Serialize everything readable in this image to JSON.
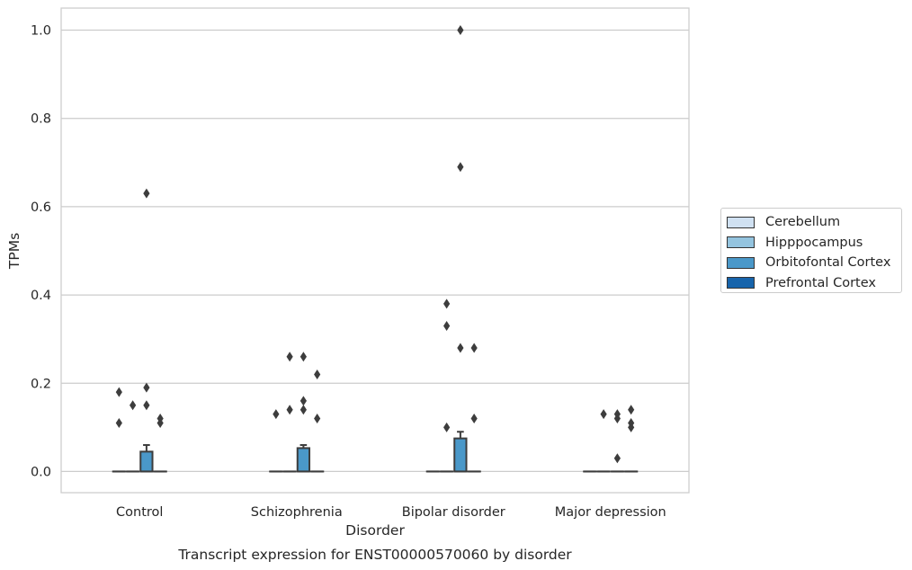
{
  "chart_data": {
    "type": "box",
    "title": "Transcript expression for ENST00000570060 by disorder",
    "xlabel": "Disorder",
    "ylabel": "TPMs",
    "categories": [
      "Control",
      "Schizophrenia",
      "Bipolar disorder",
      "Major depression"
    ],
    "ylim": [
      -0.048,
      1.05
    ],
    "yticks": [
      "0.0",
      "0.2",
      "0.4",
      "0.6",
      "0.8",
      "1.0"
    ],
    "ytick_values": [
      0.0,
      0.2,
      0.4,
      0.6,
      0.8,
      1.0
    ],
    "grid": "horizontal",
    "legend_position": "right",
    "series": [
      {
        "name": "Cerebellum",
        "color": "#d0e1f2",
        "boxes": [
          {
            "q1": 0,
            "median": 0,
            "q3": 0,
            "whisker_low": 0,
            "whisker_high": 0,
            "outliers": [
              0.11,
              0.18
            ]
          },
          {
            "q1": 0,
            "median": 0,
            "q3": 0,
            "whisker_low": 0,
            "whisker_high": 0,
            "outliers": [
              0.13
            ]
          },
          {
            "q1": 0,
            "median": 0,
            "q3": 0,
            "whisker_low": 0,
            "whisker_high": 0,
            "outliers": []
          },
          {
            "q1": 0,
            "median": 0,
            "q3": 0,
            "whisker_low": 0,
            "whisker_high": 0,
            "outliers": []
          }
        ]
      },
      {
        "name": "Hipppocampus",
        "color": "#94c4df",
        "boxes": [
          {
            "q1": 0,
            "median": 0,
            "q3": 0,
            "whisker_low": 0,
            "whisker_high": 0,
            "outliers": [
              0.15
            ]
          },
          {
            "q1": 0,
            "median": 0,
            "q3": 0,
            "whisker_low": 0,
            "whisker_high": 0,
            "outliers": [
              0.14,
              0.26
            ]
          },
          {
            "q1": 0,
            "median": 0,
            "q3": 0,
            "whisker_low": 0,
            "whisker_high": 0,
            "outliers": [
              0.1,
              0.33,
              0.38
            ]
          },
          {
            "q1": 0,
            "median": 0,
            "q3": 0,
            "whisker_low": 0,
            "whisker_high": 0,
            "outliers": [
              0.13
            ]
          }
        ]
      },
      {
        "name": "Orbitofontal Cortex",
        "color": "#4a98c9",
        "boxes": [
          {
            "q1": 0,
            "median": 0,
            "q3": 0.045,
            "whisker_low": 0,
            "whisker_high": 0.06,
            "outliers": [
              0.15,
              0.19,
              0.63
            ]
          },
          {
            "q1": 0,
            "median": 0,
            "q3": 0.053,
            "whisker_low": 0,
            "whisker_high": 0.06,
            "outliers": [
              0.14,
              0.16,
              0.26
            ]
          },
          {
            "q1": 0,
            "median": 0,
            "q3": 0.075,
            "whisker_low": 0,
            "whisker_high": 0.09,
            "outliers": [
              0.28,
              0.69,
              1.0
            ]
          },
          {
            "q1": 0,
            "median": 0,
            "q3": 0,
            "whisker_low": 0,
            "whisker_high": 0,
            "outliers": [
              0.03,
              0.12,
              0.13
            ]
          }
        ]
      },
      {
        "name": "Prefrontal Cortex",
        "color": "#1764ab",
        "boxes": [
          {
            "q1": 0,
            "median": 0,
            "q3": 0,
            "whisker_low": 0,
            "whisker_high": 0,
            "outliers": [
              0.11,
              0.12
            ]
          },
          {
            "q1": 0,
            "median": 0,
            "q3": 0,
            "whisker_low": 0,
            "whisker_high": 0,
            "outliers": [
              0.12,
              0.22
            ]
          },
          {
            "q1": 0,
            "median": 0,
            "q3": 0,
            "whisker_low": 0,
            "whisker_high": 0,
            "outliers": [
              0.12,
              0.28
            ]
          },
          {
            "q1": 0,
            "median": 0,
            "q3": 0,
            "whisker_low": 0,
            "whisker_high": 0,
            "outliers": [
              0.1,
              0.11,
              0.14
            ]
          }
        ]
      }
    ]
  }
}
